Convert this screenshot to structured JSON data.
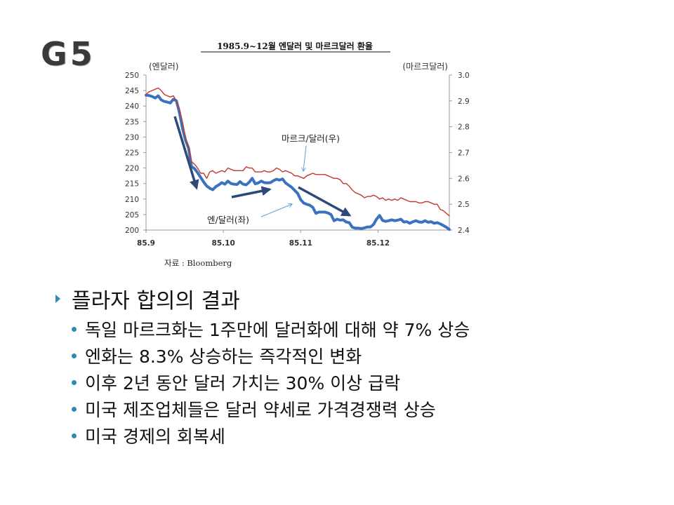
{
  "slide": {
    "title": "G5"
  },
  "chart_data": {
    "type": "line",
    "title": "1985.9~12월  엔달러  및  마르크달러  환율",
    "left_axis_label": "(엔달러)",
    "right_axis_label": "(마르크달러)",
    "source": "자료  :  Bloomberg",
    "x_tick_labels": [
      "85.9",
      "85.10",
      "85.11",
      "85.12"
    ],
    "y_left_ticks": [
      200,
      205,
      210,
      215,
      220,
      225,
      230,
      235,
      240,
      245,
      250
    ],
    "y_right_ticks": [
      "2.4",
      "2.5",
      "2.6",
      "2.7",
      "2.8",
      "2.9",
      "3.0"
    ],
    "ylim_left": [
      200,
      250
    ],
    "ylim_right": [
      2.4,
      3.0
    ],
    "series": [
      {
        "name": "엔/달러(좌)",
        "axis": "left",
        "color": "#3a72c0",
        "values": [
          243.5,
          243.4,
          243.1,
          242.6,
          243.3,
          242.0,
          241.5,
          241.3,
          241.0,
          242.2,
          241.7,
          238.0,
          233.0,
          229.0,
          226.5,
          220.5,
          219.8,
          218.5,
          217.0,
          215.5,
          214.2,
          213.5,
          213.0,
          214.0,
          214.6,
          215.3,
          214.8,
          215.8,
          215.0,
          214.8,
          214.7,
          215.6,
          214.8,
          214.6,
          215.4,
          216.7,
          214.9,
          215.2,
          215.8,
          215.3,
          215.2,
          215.3,
          215.9,
          216.4,
          216.1,
          216.5,
          215.2,
          214.5,
          213.8,
          212.8,
          211.8,
          209.8,
          208.7,
          208.3,
          208.0,
          207.3,
          205.4,
          205.8,
          205.8,
          205.8,
          205.5,
          205.0,
          203.0,
          203.5,
          203.2,
          203.3,
          202.6,
          202.4,
          200.9,
          200.6,
          200.6,
          200.5,
          200.7,
          201.0,
          201.0,
          201.8,
          203.5,
          204.7,
          203.1,
          202.8,
          203.0,
          203.3,
          203.0,
          203.2,
          203.5,
          202.6,
          202.7,
          202.2,
          202.7,
          203.0,
          202.6,
          202.5,
          203.0,
          202.5,
          202.7,
          202.2,
          202.4,
          202.0,
          201.5,
          200.9,
          200.2
        ]
      },
      {
        "name": "마르크/달러(우)",
        "axis": "right",
        "color": "#c0392b",
        "values": [
          2.925,
          2.935,
          2.94,
          2.945,
          2.95,
          2.94,
          2.925,
          2.92,
          2.915,
          2.92,
          2.9,
          2.87,
          2.82,
          2.76,
          2.72,
          2.665,
          2.655,
          2.64,
          2.62,
          2.62,
          2.6,
          2.625,
          2.63,
          2.62,
          2.625,
          2.63,
          2.625,
          2.64,
          2.635,
          2.63,
          2.63,
          2.63,
          2.63,
          2.645,
          2.64,
          2.64,
          2.625,
          2.625,
          2.625,
          2.63,
          2.625,
          2.625,
          2.63,
          2.64,
          2.635,
          2.625,
          2.63,
          2.625,
          2.62,
          2.61,
          2.61,
          2.605,
          2.6,
          2.61,
          2.615,
          2.62,
          2.615,
          2.615,
          2.615,
          2.615,
          2.61,
          2.605,
          2.6,
          2.6,
          2.595,
          2.58,
          2.58,
          2.57,
          2.555,
          2.545,
          2.54,
          2.535,
          2.525,
          2.53,
          2.53,
          2.535,
          2.53,
          2.52,
          2.525,
          2.515,
          2.52,
          2.515,
          2.52,
          2.515,
          2.525,
          2.52,
          2.515,
          2.51,
          2.51,
          2.51,
          2.505,
          2.505,
          2.51,
          2.51,
          2.505,
          2.5,
          2.5,
          2.48,
          2.475,
          2.465,
          2.455
        ]
      }
    ],
    "annotations": [
      {
        "text": "마르크/달러(우)",
        "target_series": "마르크/달러(우)"
      },
      {
        "text": "엔/달러(좌)",
        "target_series": "엔/달러(좌)"
      }
    ],
    "trend_arrow_color": "#2e4a7a",
    "grid": false
  },
  "bullets": {
    "heading": "플라자 합의의 결과",
    "items": [
      "독일 마르크화는 1주만에 달러화에 대해 약 7% 상승",
      "엔화는 8.3% 상승하는 즉각적인 변화",
      "이후 2년 동안 달러 가치는 30% 이상 급락",
      "미국 제조업체들은 달러 약세로 가격경쟁력 상승",
      "미국 경제의 회복세"
    ]
  }
}
